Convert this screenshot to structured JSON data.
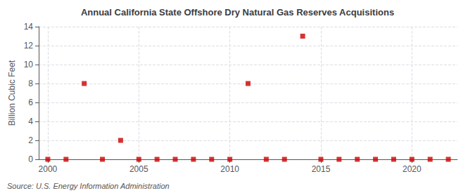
{
  "chart_data": {
    "type": "scatter",
    "title": "Annual California State Offshore Dry Natural Gas Reserves Acquisitions",
    "ylabel": "Billion Cubic Feet",
    "annotations": [
      "Source: U.S. Energy Information Administration"
    ],
    "x": [
      2000,
      2001,
      2002,
      2003,
      2004,
      2005,
      2006,
      2007,
      2008,
      2009,
      2010,
      2011,
      2012,
      2013,
      2014,
      2015,
      2016,
      2017,
      2018,
      2019,
      2020,
      2021,
      2022
    ],
    "values": [
      0,
      0,
      8,
      0,
      2,
      0,
      0,
      0,
      0,
      0,
      0,
      8,
      0,
      0,
      13,
      0,
      0,
      0,
      0,
      0,
      0,
      0,
      0
    ],
    "color": "#cc0000",
    "marker": "square",
    "xlim": [
      1999.5,
      2022.5
    ],
    "ylim": [
      0,
      14
    ],
    "xticks": [
      2000,
      2005,
      2010,
      2015,
      2020
    ],
    "yticks": [
      0,
      2,
      4,
      6,
      8,
      10,
      12,
      14
    ],
    "grid": true
  }
}
